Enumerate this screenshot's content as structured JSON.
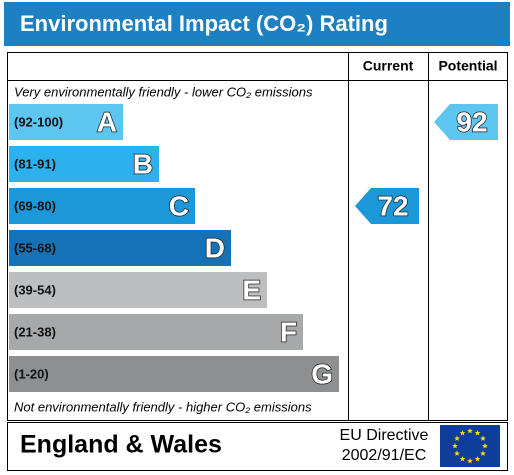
{
  "chart_data": {
    "type": "epc_rating",
    "title": "Environmental Impact (CO₂) Rating",
    "top_note": "Very environmentally friendly - lower CO₂ emissions",
    "bottom_note": "Not environmentally friendly - higher CO₂ emissions",
    "bands": [
      {
        "label": "(92-100)",
        "letter": "A",
        "range": [
          92,
          100
        ],
        "color": "#5cc5f0"
      },
      {
        "label": "(81-91)",
        "letter": "B",
        "range": [
          81,
          91
        ],
        "color": "#2db1ec"
      },
      {
        "label": "(69-80)",
        "letter": "C",
        "range": [
          69,
          80
        ],
        "color": "#1c98d8"
      },
      {
        "label": "(55-68)",
        "letter": "D",
        "range": [
          55,
          68
        ],
        "color": "#1672b6"
      },
      {
        "label": "(39-54)",
        "letter": "E",
        "range": [
          39,
          54
        ],
        "color": "#bcbec0"
      },
      {
        "label": "(21-38)",
        "letter": "F",
        "range": [
          21,
          38
        ],
        "color": "#a6a8aa"
      },
      {
        "label": "(1-20)",
        "letter": "G",
        "range": [
          1,
          20
        ],
        "color": "#8d8f91"
      }
    ],
    "current": {
      "label": "Current",
      "value": 72
    },
    "potential": {
      "label": "Potential",
      "value": 92
    },
    "footer": {
      "region": "England & Wales",
      "directive_line1": "EU Directive",
      "directive_line2": "2002/91/EC"
    }
  }
}
